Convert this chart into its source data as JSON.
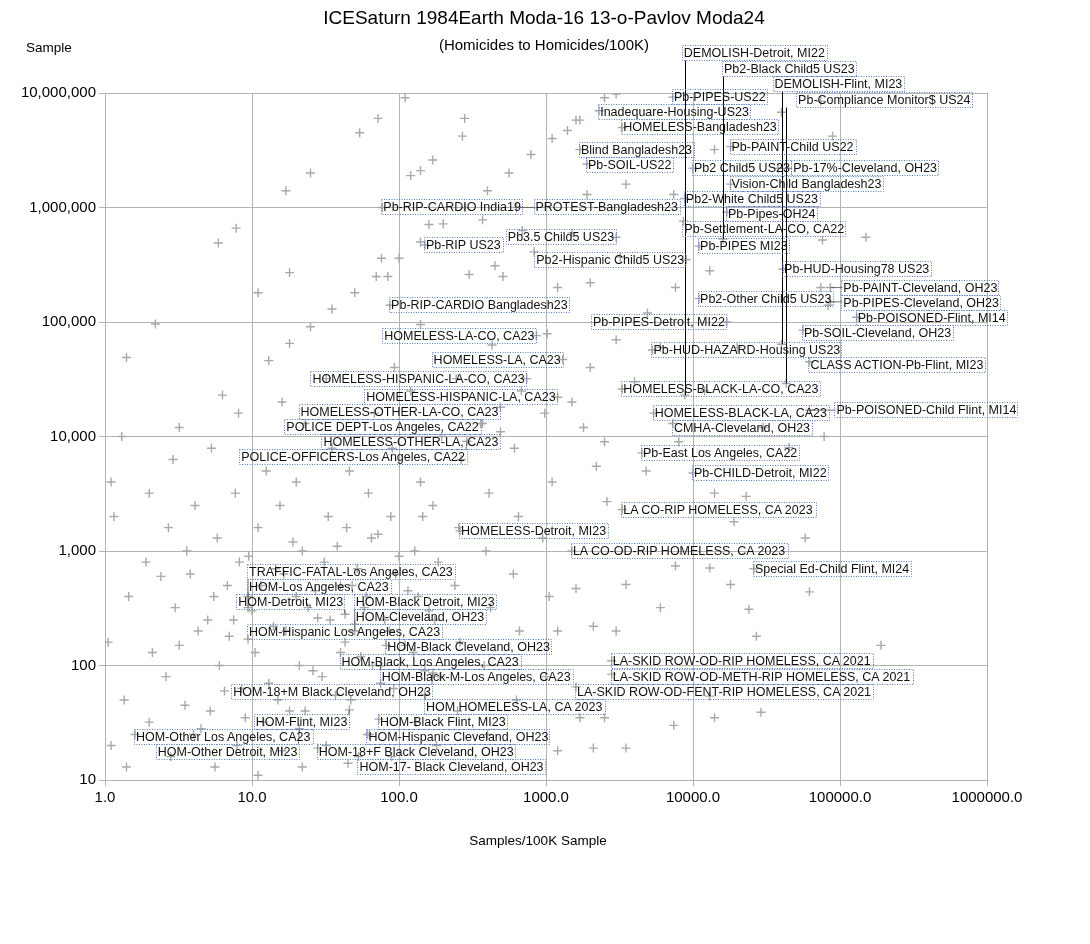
{
  "chart_data": {
    "type": "scatter",
    "title": "ICESaturn 1984Earth Moda-16 13-o-Pavlov Moda24",
    "subtitle": "(Homicides to Homicides/100K)",
    "xlabel": "Samples/100K Sample",
    "ylabel": "Sample",
    "log": "xy",
    "grid": true,
    "marker": "cross",
    "color": "#a9a9a9",
    "xlim": [
      1,
      1000000
    ],
    "ylim": [
      10,
      10000000
    ],
    "xticks": [
      {
        "value": 1,
        "label": "1.0"
      },
      {
        "value": 10,
        "label": "10.0"
      },
      {
        "value": 100,
        "label": "100.0"
      },
      {
        "value": 1000,
        "label": "1000.0"
      },
      {
        "value": 10000,
        "label": "10000.0"
      },
      {
        "value": 100000,
        "label": "100000.0"
      },
      {
        "value": 1000000,
        "label": "1000000.0"
      }
    ],
    "yticks": [
      10,
      100,
      {
        "value": 1000,
        "label": "1,000"
      },
      {
        "value": 10000,
        "label": "10,000"
      },
      {
        "value": 100000,
        "label": "100,000"
      },
      {
        "value": 1000000,
        "label": "1,000,000"
      },
      {
        "value": 10000000,
        "label": "10,000,000"
      }
    ],
    "x": [
      8800,
      16000,
      40000,
      43000,
      7300,
      2300,
      3300,
      1700,
      18000,
      1900,
      10000,
      38000,
      18000,
      8800,
      17000,
      8600,
      3000,
      11000,
      9000,
      41000,
      86000,
      11000,
      86000,
      130000,
      17000,
      56000,
      77,
      630,
      150,
      87,
      860,
      5300,
      1300,
      62000,
      740,
      3300,
      1200,
      490,
      5400,
      62000,
      360,
      7300,
      490,
      290,
      4500,
      10000,
      3300,
      260,
      1500,
      26000,
      9.4,
      9.4,
      43,
      50,
      50,
      9.4,
      82,
      40,
      75,
      170,
      2800,
      2800,
      1600,
      150,
      46,
      73,
      21,
      61,
      1.6,
      28,
      53,
      1.1,
      1.05,
      1.15,
      1.1,
      1.4,
      1.35,
      1.45,
      1.3,
      2.0,
      2.1,
      1.9,
      2.0,
      2.8,
      2.6,
      3.0,
      2.7,
      2.9,
      4.0,
      4.3,
      3.8,
      4.1,
      5.6,
      5.2,
      6.0,
      5.5,
      5.8,
      5.3,
      7.9,
      8.5,
      7.5,
      8.2,
      7.7,
      8.1,
      11,
      12,
      10.5,
      11.5,
      11,
      12.5,
      16,
      15,
      17,
      16.5,
      15.5,
      16,
      22,
      23,
      21,
      24,
      22,
      20,
      23,
      32,
      30,
      34,
      31,
      33,
      35,
      32,
      45,
      47,
      43,
      48,
      44,
      46,
      63,
      66,
      60,
      65,
      62,
      68,
      89,
      92,
      86,
      95,
      88,
      90,
      93,
      130,
      125,
      135,
      128,
      140,
      120,
      180,
      190,
      175,
      185,
      170,
      195,
      250,
      260,
      240,
      255,
      265,
      245,
      400,
      380,
      420,
      390,
      410,
      370,
      430,
      630,
      660,
      600,
      650,
      610,
      680,
      1000,
      1050,
      950,
      1100,
      980,
      1020,
      3.5,
      4.5,
      6.5,
      9,
      13,
      18,
      26,
      37,
      55,
      75,
      110,
      150,
      3.2,
      5,
      7,
      10,
      14,
      20,
      28,
      40,
      58,
      80,
      115,
      160,
      2.4,
      3.6,
      6.8,
      9.5,
      14.5,
      19,
      27,
      38,
      52,
      72,
      100,
      145,
      3.2,
      6.3,
      13,
      18,
      25,
      35,
      50,
      70,
      100,
      140,
      200,
      280,
      400,
      560,
      790,
      1100,
      1600,
      2500,
      5.9,
      7.8,
      17,
      25,
      54,
      72,
      110,
      1.4,
      2.2,
      170,
      270,
      280,
      120,
      140,
      11,
      18,
      76,
      84,
      160,
      370,
      450,
      510,
      690,
      830,
      300,
      140,
      74000,
      89000,
      150000,
      76000,
      3000,
      1700,
      1400,
      3500,
      1900,
      7400,
      1500,
      3200,
      13000,
      4900,
      1200,
      40000,
      14000,
      7600,
      2000,
      74000,
      83000,
      78000,
      58000,
      62000,
      190000,
      18000,
      23000,
      14000,
      4800,
      2600,
      13000,
      7600,
      3500,
      1600,
      6000,
      24000,
      2100,
      3000,
      1200,
      2200,
      19000,
      29000,
      14000,
      7400,
      3500,
      2100,
      1200,
      27000,
      13000,
      2500,
      1700,
      1500,
      2000,
      2500,
      4000,
      6000,
      8000,
      12000,
      20000,
      30000,
      45000,
      3000,
      1800
    ],
    "values": [
      23000,
      530000,
      64000,
      29000,
      9200000,
      7000000,
      5000000,
      3200000,
      3400000,
      2400000,
      2200000,
      2200000,
      1600000,
      1200000,
      910000,
      760000,
      550000,
      460000,
      350000,
      290000,
      200000,
      160000,
      150000,
      110000,
      100000,
      85000,
      1000000,
      1000000,
      470000,
      140000,
      76000,
      57000,
      47000,
      45000,
      32000,
      26000,
      22000,
      18000,
      16000,
      17000,
      13000,
      13000,
      11000,
      9100,
      7200,
      4800,
      2300,
      1500,
      1000,
      700,
      400,
      320,
      280,
      230,
      200,
      170,
      150,
      130,
      99,
      86,
      110,
      84,
      65,
      56,
      41,
      34,
      28,
      25,
      25,
      19,
      16,
      20,
      160,
      2000,
      4000,
      13,
      50,
      400,
      10000,
      32,
      130,
      800,
      3200,
      16,
      80,
      320,
      1600,
      6300,
      25,
      200,
      630,
      2500,
      13,
      40,
      100,
      400,
      1300,
      7900,
      20,
      63,
      250,
      800,
      3200,
      16000,
      11,
      32,
      130,
      500,
      1600,
      5000,
      18,
      50,
      200,
      630,
      2500,
      20000,
      13,
      40,
      100,
      320,
      1000,
      4000,
      13000,
      20,
      80,
      250,
      800,
      2000,
      7900,
      32000,
      14,
      50,
      160,
      500,
      1600,
      5000,
      25,
      100,
      400,
      1300,
      3200,
      16000,
      16,
      63,
      200,
      630,
      2000,
      7900,
      40000,
      32,
      130,
      400,
      1000,
      4000,
      25000,
      20,
      80,
      250,
      800,
      2500,
      10000,
      40,
      160,
      500,
      1600,
      6300,
      32000,
      25,
      100,
      320,
      1000,
      3200,
      13000,
      63000,
      50,
      200,
      630,
      2000,
      7900,
      25000,
      80,
      400,
      1300,
      4000,
      16000,
      79000,
      45,
      28,
      60,
      35,
      70,
      40,
      90,
      55,
      120,
      70,
      150,
      90,
      150,
      250,
      180,
      300,
      220,
      400,
      260,
      500,
      320,
      250,
      450,
      300,
      600,
      1000,
      500,
      900,
      700,
      1200,
      450,
      1100,
      700,
      1400,
      900,
      2000,
      12000,
      23000,
      46000,
      65000,
      91000,
      130000,
      180000,
      250000,
      360000,
      500000,
      720000,
      1000000,
      1400000,
      2000000,
      2900000,
      4000000,
      5800000,
      9100000,
      490000,
      660000,
      1400000,
      2000000,
      4500000,
      6000000,
      9100000,
      49000,
      96000,
      2600000,
      4200000,
      6000000,
      1900000,
      2100000,
      180000,
      270000,
      360000,
      250000,
      710000,
      780000,
      310000,
      250000,
      630000,
      410000,
      260000,
      95000,
      8500000,
      4200000,
      550000,
      520000,
      9800000,
      5800000,
      4700000,
      1600000,
      1300000,
      1300000,
      600000,
      370000,
      280000,
      120000,
      200000,
      6800000,
      3200000,
      200000,
      220000,
      200000,
      140000,
      10000,
      1300,
      440,
      150,
      510,
      3000,
      3200,
      5000,
      2700,
      710,
      740,
      510,
      470,
      320,
      310,
      220,
      200,
      200,
      5500,
      1800,
      39,
      35,
      30,
      19,
      19,
      18,
      180,
      54,
      35,
      35,
      20000,
      40000,
      9000,
      30000,
      60000,
      9000,
      25000,
      60000,
      12000,
      8000,
      70000,
      12000
    ],
    "annotations": [
      {
        "text": "DEMOLISH-Detroit, MI22",
        "x": 8800,
        "y": 23000
      },
      {
        "text": "Pb2-Black Child5 US23",
        "x": 16000,
        "y": 530000
      },
      {
        "text": "DEMOLISH-Flint, MI23",
        "x": 40000,
        "y": 64000
      },
      {
        "text": "Pb-Compliance Monitor$ US24",
        "x": 43000,
        "y": 29000
      },
      {
        "text": "Pb-PIPES-US22",
        "x": 7300,
        "y": 9200000
      },
      {
        "text": "Inadequare-Housing-US23",
        "x": 2300,
        "y": 7000000
      },
      {
        "text": "HOMELESS-Bangladesh23",
        "x": 3300,
        "y": 5000000
      },
      {
        "text": "Blind Bangladesh23",
        "x": 1700,
        "y": 3200000
      },
      {
        "text": "Pb-PAINT-Child US22",
        "x": 18000,
        "y": 3400000
      },
      {
        "text": "Pb-SOIL-US22",
        "x": 1900,
        "y": 2400000
      },
      {
        "text": "Pb2 Child5 US23",
        "x": 10000,
        "y": 2200000
      },
      {
        "text": "Pb-17%-Cleveland, OH23",
        "x": 38000,
        "y": 2200000
      },
      {
        "text": "Vision-Child Bangladesh23",
        "x": 18000,
        "y": 1600000
      },
      {
        "text": "Pb2-White Child5 US23",
        "x": 8800,
        "y": 1200000
      },
      {
        "text": "Pb-Pipes-OH24",
        "x": 17000,
        "y": 910000
      },
      {
        "text": "Pb-Settlement-LA-CO, CA22",
        "x": 8600,
        "y": 760000
      },
      {
        "text": "Pb3.5 Child5 US23",
        "x": 3000,
        "y": 550000
      },
      {
        "text": "Pb-PIPES MI23",
        "x": 11000,
        "y": 460000
      },
      {
        "text": "Pb2-Hispanic Child5 US23",
        "x": 9000,
        "y": 350000
      },
      {
        "text": "Pb-HUD-Housing78 US23",
        "x": 41000,
        "y": 290000
      },
      {
        "text": "Pb-PAINT-Cleveland, OH23",
        "x": 86000,
        "y": 200000
      },
      {
        "text": "Pb2-Other Child5 US23",
        "x": 11000,
        "y": 160000
      },
      {
        "text": "Pb-PIPES-Cleveland, OH23",
        "x": 86000,
        "y": 150000
      },
      {
        "text": "Pb-POISONED-Flint, MI14",
        "x": 130000,
        "y": 110000
      },
      {
        "text": "Pb-PIPES-Detroit, MI22",
        "x": 17000,
        "y": 100000
      },
      {
        "text": "Pb-SOIL-Cleveland, OH23",
        "x": 56000,
        "y": 85000
      },
      {
        "text": "Pb-RIP-CARDIO India19",
        "x": 77,
        "y": 1000000
      },
      {
        "text": "PROTEST-Bangladesh23",
        "x": 630,
        "y": 1000000
      },
      {
        "text": "Pb-RIP US23",
        "x": 150,
        "y": 470000
      },
      {
        "text": "Pb-RIP-CARDIO Bangladesh23",
        "x": 87,
        "y": 140000
      },
      {
        "text": "HOMELESS-LA-CO, CA23",
        "x": 860,
        "y": 76000
      },
      {
        "text": "Pb-HUD-HAZARD-Housing US23",
        "x": 5300,
        "y": 57000
      },
      {
        "text": "HOMELESS-LA, CA23",
        "x": 1300,
        "y": 47000
      },
      {
        "text": "CLASS ACTION-Pb-Flint, MI23",
        "x": 62000,
        "y": 45000
      },
      {
        "text": "HOMELESS-HISPANIC-LA-CO, CA23",
        "x": 740,
        "y": 32000
      },
      {
        "text": "HOMELESS-BLACK-LA-CO, CA23",
        "x": 3300,
        "y": 26000
      },
      {
        "text": "HOMELESS-HISPANIC-LA, CA23",
        "x": 1200,
        "y": 22000
      },
      {
        "text": "HOMELESS-OTHER-LA-CO, CA23",
        "x": 490,
        "y": 18000
      },
      {
        "text": "HOMELESS-BLACK-LA, CA23",
        "x": 5400,
        "y": 16000
      },
      {
        "text": "Pb-POISONED-Child Flint, MI14",
        "x": 62000,
        "y": 17000
      },
      {
        "text": "POLICE DEPT-Los Angeles, CA22",
        "x": 360,
        "y": 13000
      },
      {
        "text": "CMHA-Cleveland, OH23",
        "x": 7300,
        "y": 13000
      },
      {
        "text": "HOMELESS-OTHER-LA, CA23",
        "x": 490,
        "y": 11000
      },
      {
        "text": "POLICE-OFFICERS-Los Angeles, CA22",
        "x": 290,
        "y": 9100
      },
      {
        "text": "Pb-East Los Angeles, CA22",
        "x": 4500,
        "y": 7200
      },
      {
        "text": "Pb-CHILD-Detroit, MI22",
        "x": 10000,
        "y": 4800
      },
      {
        "text": "LA CO-RIP HOMELESS, CA 2023",
        "x": 3300,
        "y": 2300
      },
      {
        "text": "HOMELESS-Detroit, MI23",
        "x": 260,
        "y": 1500
      },
      {
        "text": "LA CO-OD-RIP HOMELESS, CA 2023",
        "x": 1500,
        "y": 1000
      },
      {
        "text": "Special Ed-Child Flint, MI24",
        "x": 26000,
        "y": 700
      },
      {
        "text": "TRAFFIC-FATAL-Los Angeles, CA23",
        "x": 9.4,
        "y": 400
      },
      {
        "text": "HOM-Los Angeles, CA23",
        "x": 9.4,
        "y": 320
      },
      {
        "text": "HOM-Detroit, MI23",
        "x": 43,
        "y": 280
      },
      {
        "text": "HOM-Black Detroit, MI23",
        "x": 50,
        "y": 230
      },
      {
        "text": "HOM-Cleveland, OH23",
        "x": 50,
        "y": 200
      },
      {
        "text": "HOM-Hispanic Los Angeles, CA23",
        "x": 9.4,
        "y": 170
      },
      {
        "text": "HOM-Black Cleveland, OH23",
        "x": 82,
        "y": 150
      },
      {
        "text": "HOM-Black, Los Angeles, CA23",
        "x": 40,
        "y": 130
      },
      {
        "text": "HOM-Black-M-Los Angeles, CA23",
        "x": 75,
        "y": 99
      },
      {
        "text": "HOM-18+M Black Cleveland, OH23",
        "x": 170,
        "y": 86
      },
      {
        "text": "LA-SKID ROW-OD-RIP HOMELESS, CA 2021",
        "x": 2800,
        "y": 110
      },
      {
        "text": "LA-SKID ROW-OD-METH-RIP HOMELESS, CA 2021",
        "x": 2800,
        "y": 84
      },
      {
        "text": "LA-SKID ROW-OD-FENT-RIP HOMELESS, CA 2021",
        "x": 1600,
        "y": 65
      },
      {
        "text": "HOM HOMELESS-LA, CA 2023",
        "x": 150,
        "y": 56
      },
      {
        "text": "HOM-Flint, MI23",
        "x": 46,
        "y": 41
      },
      {
        "text": "HOM-Black Flint, MI23",
        "x": 73,
        "y": 34
      },
      {
        "text": "HOM-Other Detroit, MI23",
        "x": 21,
        "y": 28
      },
      {
        "text": "HOM-Hispanic Cleveland, OH23",
        "x": 61,
        "y": 25
      },
      {
        "text": "HOM-Other Los Angeles, CA23",
        "x": 1.6,
        "y": 25
      },
      {
        "text": "HOM-18+F Black Cleveland, OH23",
        "x": 28,
        "y": 19
      },
      {
        "text": "HOM-17- Black Cleveland, OH23",
        "x": 53,
        "y": 16
      }
    ]
  }
}
